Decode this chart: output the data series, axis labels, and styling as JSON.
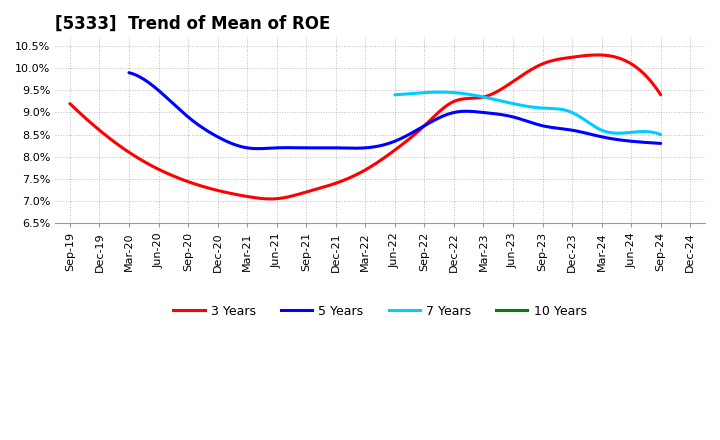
{
  "title": "[5333]  Trend of Mean of ROE",
  "x_labels": [
    "Sep-19",
    "Dec-19",
    "Mar-20",
    "Jun-20",
    "Sep-20",
    "Dec-20",
    "Mar-21",
    "Jun-21",
    "Sep-21",
    "Dec-21",
    "Mar-22",
    "Jun-22",
    "Sep-22",
    "Dec-22",
    "Mar-23",
    "Jun-23",
    "Sep-23",
    "Dec-23",
    "Mar-24",
    "Jun-24",
    "Sep-24",
    "Dec-24"
  ],
  "ytick_vals": [
    0.065,
    0.07,
    0.075,
    0.08,
    0.085,
    0.09,
    0.095,
    0.1,
    0.105
  ],
  "ytick_labels": [
    "6.5%",
    "7.0%",
    "7.5%",
    "8.0%",
    "8.5%",
    "9.0%",
    "9.5%",
    "10.0%",
    "10.5%"
  ],
  "ylim": [
    0.065,
    0.107
  ],
  "series": {
    "3 Years": {
      "color": "#FF0000",
      "x": [
        0,
        1,
        2,
        6,
        7,
        8,
        9,
        10,
        11,
        12,
        13,
        14,
        15,
        16,
        17,
        18,
        20
      ],
      "y": [
        0.092,
        0.086,
        0.081,
        0.071,
        0.0705,
        0.072,
        0.074,
        0.077,
        0.0815,
        0.087,
        0.0925,
        0.0935,
        0.097,
        0.101,
        0.1025,
        0.103,
        0.094
      ]
    },
    "5 Years": {
      "color": "#0000FF",
      "x": [
        2,
        3,
        4,
        5,
        6,
        7,
        8,
        9,
        10,
        11,
        12,
        13,
        14,
        15,
        16,
        17,
        18,
        19,
        20
      ],
      "y": [
        0.099,
        0.095,
        0.089,
        0.0845,
        0.082,
        0.082,
        0.082,
        0.082,
        0.082,
        0.0835,
        0.087,
        0.09,
        0.09,
        0.089,
        0.087,
        0.086,
        0.0845,
        0.0835,
        0.083
      ]
    },
    "7 Years": {
      "color": "#00CCFF",
      "x": [
        11,
        12,
        13,
        14,
        15,
        16,
        17,
        18,
        19,
        20
      ],
      "y": [
        0.094,
        0.0945,
        0.0945,
        0.0935,
        0.092,
        0.091,
        0.09,
        0.086,
        0.0855,
        0.085
      ]
    },
    "10 Years": {
      "color": "#008000",
      "x": [],
      "y": []
    }
  },
  "legend_entries": [
    [
      "3 Years",
      "#FF0000"
    ],
    [
      "5 Years",
      "#0000FF"
    ],
    [
      "7 Years",
      "#00CCFF"
    ],
    [
      "10 Years",
      "#008000"
    ]
  ],
  "background_color": "#FFFFFF",
  "plot_bg_color": "#FFFFFF",
  "grid_color": "#BBBBBB",
  "title_fontsize": 12,
  "tick_fontsize": 8
}
